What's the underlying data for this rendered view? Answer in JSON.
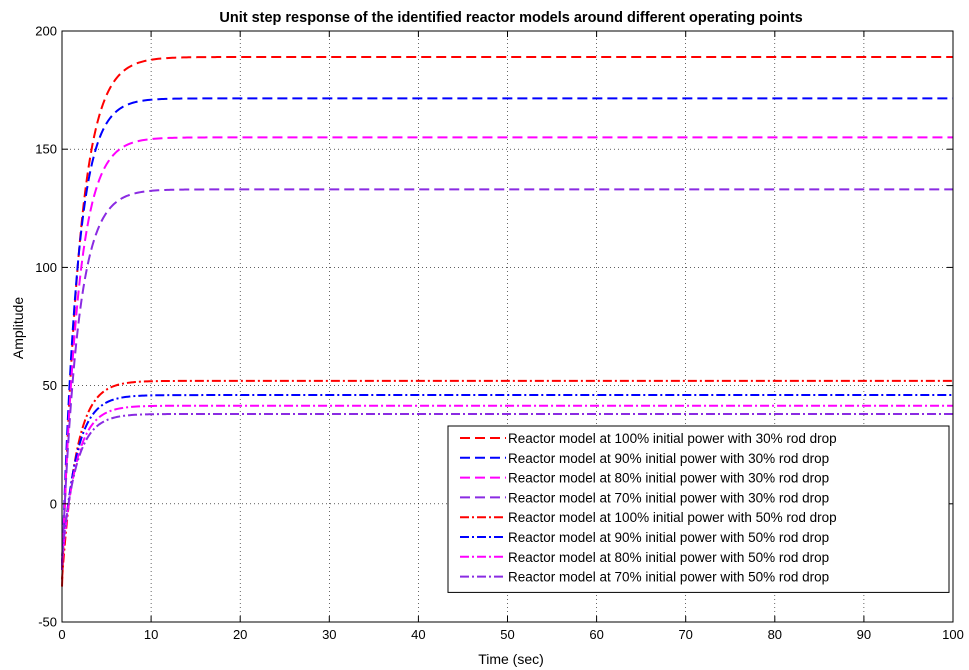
{
  "chart_data": {
    "type": "line",
    "title": "Unit step response of the identified reactor models around different operating points",
    "xlabel": "Time (sec)",
    "ylabel": "Amplitude",
    "xlim": [
      0,
      100
    ],
    "ylim": [
      -50,
      200
    ],
    "xticks": [
      "0",
      "10",
      "20",
      "30",
      "40",
      "50",
      "60",
      "70",
      "80",
      "90",
      "100"
    ],
    "yticks": [
      "-50",
      "0",
      "50",
      "100",
      "150",
      "200"
    ],
    "grid": true,
    "legend_position": "bottom-right",
    "series": [
      {
        "name": "Reactor model at 100% initial power with 30% rod drop",
        "color": "#ff0000",
        "style": "dashed",
        "final_value": 189,
        "initial_value": -35,
        "time_constant": 1.9
      },
      {
        "name": "Reactor model at 90% initial power with 30% rod drop",
        "color": "#0000ff",
        "style": "dashed",
        "final_value": 171.5,
        "initial_value": -28,
        "time_constant": 1.7
      },
      {
        "name": "Reactor model at 80% initial power with 30% rod drop",
        "color": "#ff00ff",
        "style": "dashed",
        "final_value": 155,
        "initial_value": -28,
        "time_constant": 1.8
      },
      {
        "name": "Reactor model at 70% initial power with 30% rod drop",
        "color": "#8a2be2",
        "style": "dashed",
        "final_value": 133,
        "initial_value": -25,
        "time_constant": 1.8
      },
      {
        "name": "Reactor model at 100% initial power with 50% rod drop",
        "color": "#ff0000",
        "style": "dashdot",
        "final_value": 52,
        "initial_value": -32,
        "time_constant": 1.6
      },
      {
        "name": "Reactor model at 90% initial power with 50% rod drop",
        "color": "#0000ff",
        "style": "dashdot",
        "final_value": 46,
        "initial_value": -25,
        "time_constant": 1.6
      },
      {
        "name": "Reactor model at 80% initial power with 50% rod drop",
        "color": "#ff00ff",
        "style": "dashdot",
        "final_value": 41.5,
        "initial_value": -25,
        "time_constant": 1.6
      },
      {
        "name": "Reactor model at 70% initial power with 50% rod drop",
        "color": "#8a2be2",
        "style": "dashdot",
        "final_value": 38,
        "initial_value": -22,
        "time_constant": 1.6
      }
    ]
  }
}
